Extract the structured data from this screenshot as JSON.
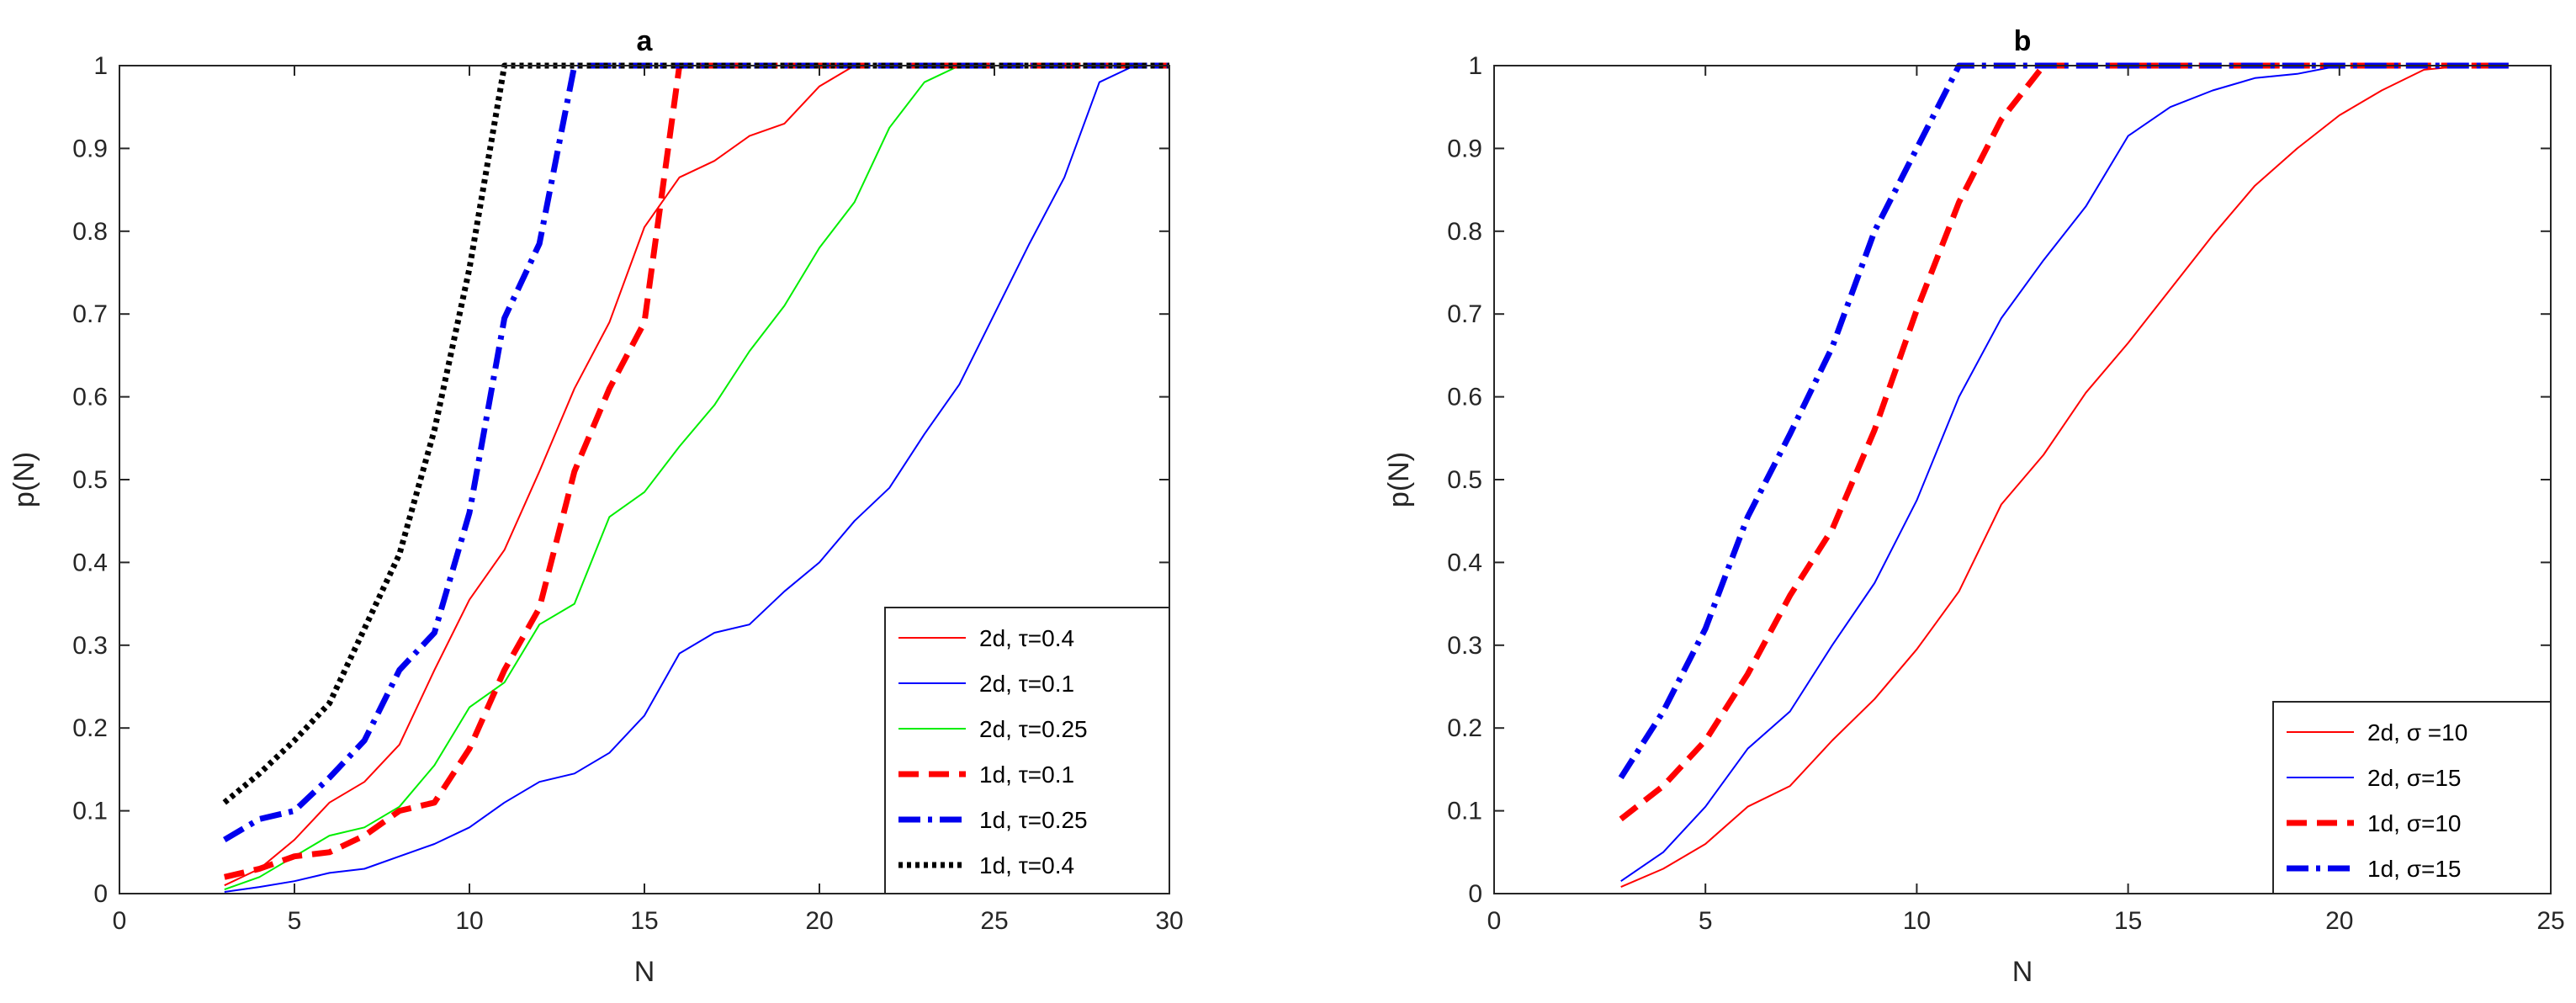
{
  "chart_data": [
    {
      "type": "line",
      "title": "a",
      "xlabel": "N",
      "ylabel": "p(N)",
      "xlim": [
        0,
        30
      ],
      "ylim": [
        0,
        1
      ],
      "xticks": [
        "0",
        "5",
        "10",
        "15",
        "20",
        "25",
        "30"
      ],
      "yticks": [
        "0",
        "0.1",
        "0.2",
        "0.3",
        "0.4",
        "0.5",
        "0.6",
        "0.7",
        "0.8",
        "0.9",
        "1"
      ],
      "legend_position": "bottom-right",
      "series": [
        {
          "name": "2d, τ=0.4",
          "color": "#ff0000",
          "style": "solid",
          "width": "thin",
          "x": [
            3,
            4,
            5,
            6,
            7,
            8,
            9,
            10,
            11,
            12,
            13,
            14,
            15,
            16,
            17,
            18,
            19,
            20,
            21,
            22,
            23,
            24,
            25,
            26,
            27,
            28,
            29,
            30
          ],
          "y": [
            0.01,
            0.03,
            0.065,
            0.11,
            0.135,
            0.18,
            0.27,
            0.355,
            0.415,
            0.51,
            0.61,
            0.69,
            0.805,
            0.865,
            0.885,
            0.915,
            0.93,
            0.975,
            1,
            1,
            1,
            1,
            1,
            1,
            1,
            1,
            1,
            1
          ]
        },
        {
          "name": "2d, τ=0.1",
          "color": "#0000ff",
          "style": "solid",
          "width": "thin",
          "x": [
            3,
            4,
            5,
            6,
            7,
            8,
            9,
            10,
            11,
            12,
            13,
            14,
            15,
            16,
            17,
            18,
            19,
            20,
            21,
            22,
            23,
            24,
            25,
            26,
            27,
            28,
            29,
            30
          ],
          "y": [
            0.002,
            0.008,
            0.015,
            0.025,
            0.03,
            0.045,
            0.06,
            0.08,
            0.11,
            0.135,
            0.145,
            0.17,
            0.215,
            0.29,
            0.315,
            0.325,
            0.365,
            0.4,
            0.45,
            0.49,
            0.555,
            0.615,
            0.7,
            0.785,
            0.865,
            0.98,
            1,
            1
          ]
        },
        {
          "name": "2d, τ=0.25",
          "color": "#00ee00",
          "style": "solid",
          "width": "thin",
          "x": [
            3,
            4,
            5,
            6,
            7,
            8,
            9,
            10,
            11,
            12,
            13,
            14,
            15,
            16,
            17,
            18,
            19,
            20,
            21,
            22,
            23,
            24,
            25,
            26,
            27,
            28,
            29,
            30
          ],
          "y": [
            0.005,
            0.02,
            0.045,
            0.07,
            0.08,
            0.105,
            0.155,
            0.225,
            0.255,
            0.325,
            0.35,
            0.455,
            0.485,
            0.54,
            0.59,
            0.655,
            0.71,
            0.78,
            0.835,
            0.925,
            0.98,
            1,
            1,
            1,
            1,
            1,
            1,
            1
          ]
        },
        {
          "name": "1d, τ=0.1",
          "color": "#ff0000",
          "style": "dashed",
          "width": "thick",
          "x": [
            3,
            4,
            5,
            6,
            7,
            8,
            9,
            10,
            11,
            12,
            13,
            14,
            15,
            16,
            17,
            18,
            19,
            20,
            21,
            22,
            23,
            24,
            25,
            26,
            27,
            28,
            29,
            30
          ],
          "y": [
            0.02,
            0.03,
            0.045,
            0.05,
            0.07,
            0.1,
            0.11,
            0.175,
            0.27,
            0.345,
            0.51,
            0.61,
            0.69,
            1,
            1,
            1,
            1,
            1,
            1,
            1,
            1,
            1,
            1,
            1,
            1,
            1,
            1,
            1
          ]
        },
        {
          "name": "1d, τ=0.25",
          "color": "#0000ee",
          "style": "dashdot",
          "width": "thick",
          "x": [
            3,
            4,
            5,
            6,
            7,
            8,
            9,
            10,
            11,
            12,
            13,
            14,
            15,
            16,
            17,
            18,
            19,
            20,
            21,
            22,
            23,
            24,
            25,
            26,
            27,
            28,
            29,
            30
          ],
          "y": [
            0.065,
            0.09,
            0.1,
            0.14,
            0.185,
            0.27,
            0.315,
            0.46,
            0.695,
            0.785,
            1,
            1,
            1,
            1,
            1,
            1,
            1,
            1,
            1,
            1,
            1,
            1,
            1,
            1,
            1,
            1,
            1,
            1
          ]
        },
        {
          "name": "1d, τ=0.4",
          "color": "#000000",
          "style": "dotted",
          "width": "thick",
          "x": [
            3,
            4,
            5,
            6,
            7,
            8,
            9,
            10,
            11,
            12,
            13,
            14,
            15,
            16,
            17,
            18,
            19,
            20,
            21,
            22,
            23,
            24,
            25,
            26,
            27,
            28,
            29,
            30
          ],
          "y": [
            0.11,
            0.145,
            0.185,
            0.23,
            0.32,
            0.41,
            0.56,
            0.755,
            1,
            1,
            1,
            1,
            1,
            1,
            1,
            1,
            1,
            1,
            1,
            1,
            1,
            1,
            1,
            1,
            1,
            1,
            1,
            1
          ]
        }
      ]
    },
    {
      "type": "line",
      "title": "b",
      "xlabel": "N",
      "ylabel": "p(N)",
      "xlim": [
        0,
        25
      ],
      "ylim": [
        0,
        1
      ],
      "xticks": [
        "0",
        "5",
        "10",
        "15",
        "20",
        "25"
      ],
      "yticks": [
        "0",
        "0.1",
        "0.2",
        "0.3",
        "0.4",
        "0.5",
        "0.6",
        "0.7",
        "0.8",
        "0.9",
        "1"
      ],
      "legend_position": "bottom-right",
      "series": [
        {
          "name": "2d, σ =10",
          "color": "#ff0000",
          "style": "solid",
          "width": "thin",
          "x": [
            3,
            4,
            5,
            6,
            7,
            8,
            9,
            10,
            11,
            12,
            13,
            14,
            15,
            16,
            17,
            18,
            19,
            20,
            21,
            22,
            23,
            24
          ],
          "y": [
            0.008,
            0.03,
            0.06,
            0.105,
            0.13,
            0.185,
            0.235,
            0.295,
            0.365,
            0.47,
            0.53,
            0.605,
            0.665,
            0.73,
            0.795,
            0.855,
            0.9,
            0.94,
            0.97,
            0.995,
            1,
            1
          ]
        },
        {
          "name": "2d, σ=15",
          "color": "#0000ff",
          "style": "solid",
          "width": "thin",
          "x": [
            3,
            4,
            5,
            6,
            7,
            8,
            9,
            10,
            11,
            12,
            13,
            14,
            15,
            16,
            17,
            18,
            19,
            20,
            21,
            22,
            23,
            24
          ],
          "y": [
            0.015,
            0.05,
            0.105,
            0.175,
            0.22,
            0.3,
            0.375,
            0.475,
            0.6,
            0.695,
            0.765,
            0.83,
            0.915,
            0.95,
            0.97,
            0.985,
            0.99,
            1,
            1,
            1,
            1,
            1
          ]
        },
        {
          "name": "1d, σ=10",
          "color": "#ff0000",
          "style": "dashed",
          "width": "thick",
          "x": [
            3,
            4,
            5,
            6,
            7,
            8,
            9,
            10,
            11,
            12,
            13,
            14,
            15,
            16,
            17,
            18,
            19,
            20,
            21,
            22,
            23,
            24
          ],
          "y": [
            0.09,
            0.13,
            0.185,
            0.265,
            0.36,
            0.44,
            0.56,
            0.705,
            0.835,
            0.935,
            1,
            1,
            1,
            1,
            1,
            1,
            1,
            1,
            1,
            1,
            1,
            1
          ]
        },
        {
          "name": "1d, σ=15",
          "color": "#0000ee",
          "style": "dashdot",
          "width": "thick",
          "x": [
            3,
            4,
            5,
            6,
            7,
            8,
            9,
            10,
            11,
            12,
            13,
            14,
            15,
            16,
            17,
            18,
            19,
            20,
            21,
            22,
            23,
            24
          ],
          "y": [
            0.14,
            0.22,
            0.32,
            0.455,
            0.555,
            0.66,
            0.8,
            0.9,
            1,
            1,
            1,
            1,
            1,
            1,
            1,
            1,
            1,
            1,
            1,
            1,
            1,
            1
          ]
        }
      ]
    }
  ]
}
